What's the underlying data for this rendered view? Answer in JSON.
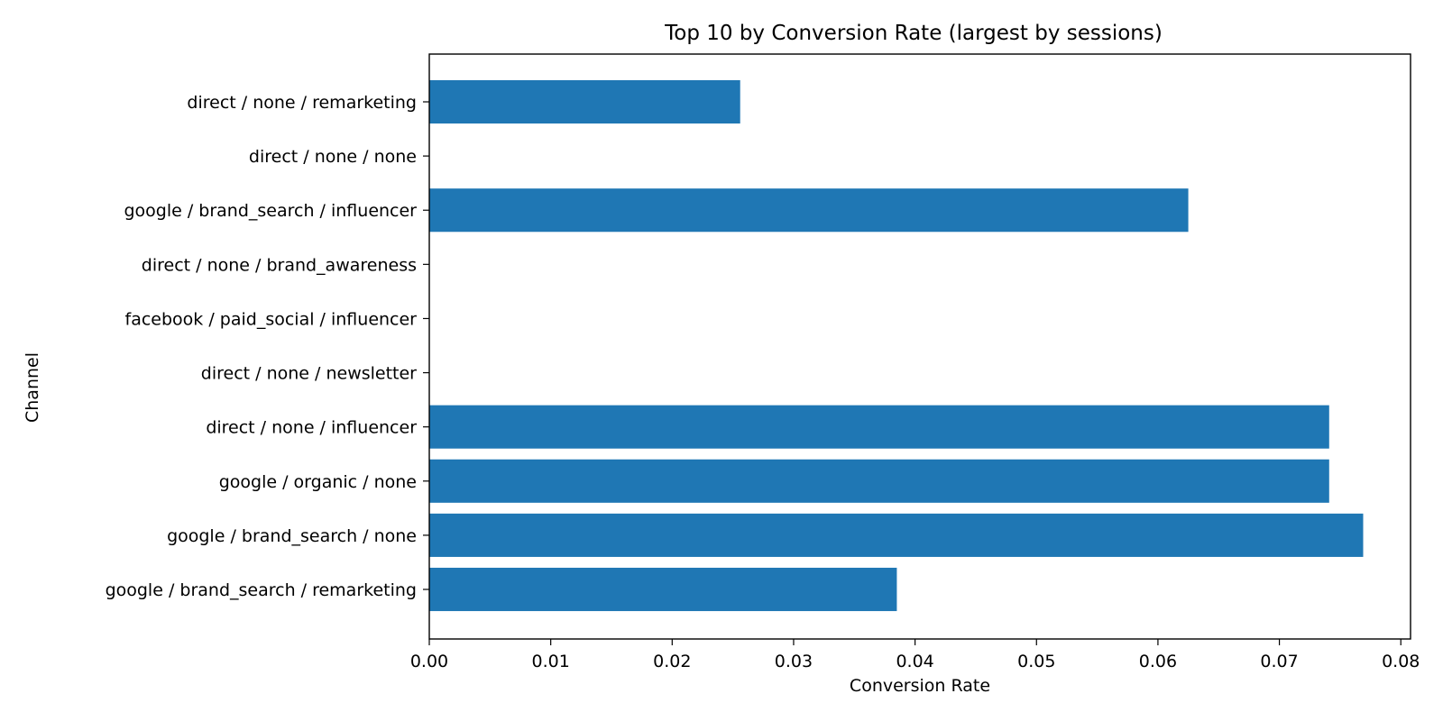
{
  "chart_data": {
    "type": "bar",
    "orientation": "horizontal",
    "title": "Top 10 by Conversion Rate (largest by sessions)",
    "xlabel": "Conversion Rate",
    "ylabel": "Channel",
    "xlim": [
      0.0,
      0.0808
    ],
    "xticks": [
      "0.00",
      "0.01",
      "0.02",
      "0.03",
      "0.04",
      "0.05",
      "0.06",
      "0.07",
      "0.08"
    ],
    "grid": false,
    "bar_color": "#1f77b4",
    "categories": [
      "direct / none / remarketing",
      "direct / none / none",
      "google / brand_search / influencer",
      "direct / none / brand_awareness",
      "facebook / paid_social / influencer",
      "direct / none / newsletter",
      "direct / none / influencer",
      "google / organic / none",
      "google / brand_search / none",
      "google / brand_search / remarketing"
    ],
    "values": [
      0.0256,
      0.0,
      0.0625,
      0.0,
      0.0,
      0.0,
      0.0741,
      0.0741,
      0.0769,
      0.0385
    ]
  }
}
